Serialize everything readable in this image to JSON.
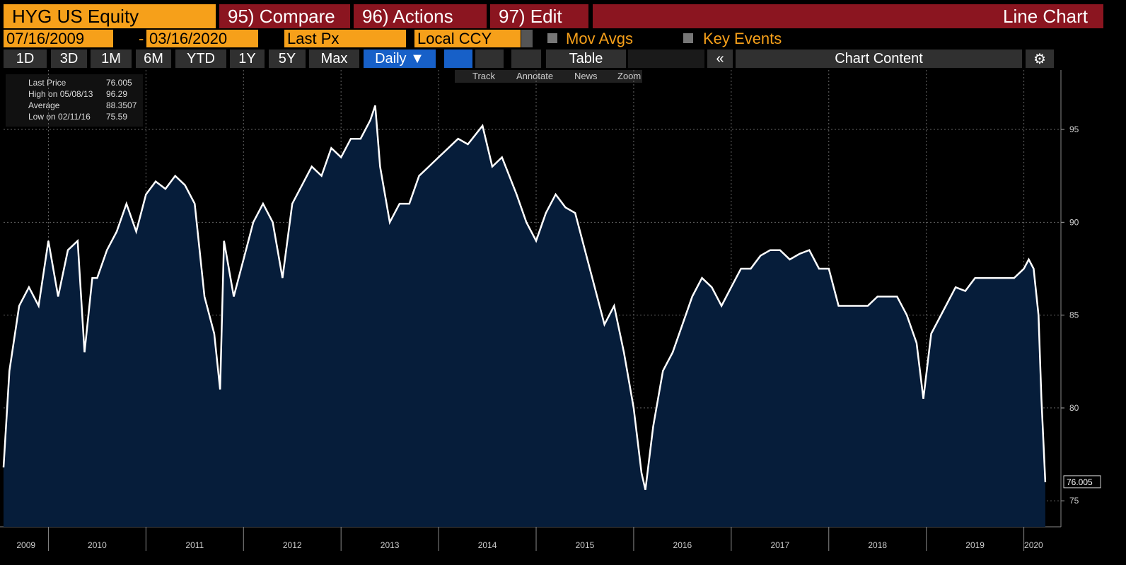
{
  "toolbar": {
    "security": "HYG US Equity",
    "compare": "95) Compare",
    "actions": "96) Actions",
    "edit": "97) Edit",
    "view": "Line Chart",
    "start_date": "07/16/2009",
    "date_sep": "-",
    "end_date": "03/16/2020",
    "field": "Last Px",
    "currency": "Local CCY",
    "mov_avgs": "Mov Avgs",
    "key_events": "Key Events",
    "periods": [
      "1D",
      "3D",
      "1M",
      "6M",
      "YTD",
      "1Y",
      "5Y",
      "Max"
    ],
    "frequency": "Daily ▼",
    "table": "Table",
    "chart_content": "Chart Content",
    "tools": [
      "Track",
      "Annotate",
      "News",
      "Zoom"
    ]
  },
  "legend": {
    "rows": [
      [
        "Last Price",
        "76.005"
      ],
      [
        "High on 05/08/13",
        "96.29"
      ],
      [
        "Average",
        "88.3507"
      ],
      [
        "Low on 02/11/16",
        "75.59"
      ]
    ]
  },
  "chart_data": {
    "type": "area",
    "series": [
      {
        "name": "Last Price",
        "color": "#ffffff",
        "fill": "#061d3a",
        "x": [
          2009.54,
          2009.6,
          2009.7,
          2009.8,
          2009.9,
          2010.0,
          2010.1,
          2010.2,
          2010.3,
          2010.37,
          2010.45,
          2010.5,
          2010.6,
          2010.7,
          2010.8,
          2010.9,
          2011.0,
          2011.1,
          2011.2,
          2011.3,
          2011.4,
          2011.5,
          2011.6,
          2011.7,
          2011.76,
          2011.8,
          2011.9,
          2012.0,
          2012.1,
          2012.2,
          2012.3,
          2012.4,
          2012.5,
          2012.6,
          2012.7,
          2012.8,
          2012.9,
          2013.0,
          2013.1,
          2013.2,
          2013.3,
          2013.35,
          2013.4,
          2013.5,
          2013.6,
          2013.7,
          2013.8,
          2013.9,
          2014.0,
          2014.1,
          2014.2,
          2014.3,
          2014.45,
          2014.55,
          2014.65,
          2014.8,
          2014.9,
          2015.0,
          2015.1,
          2015.2,
          2015.3,
          2015.4,
          2015.5,
          2015.6,
          2015.7,
          2015.8,
          2015.9,
          2016.0,
          2016.08,
          2016.12,
          2016.2,
          2016.3,
          2016.4,
          2016.5,
          2016.6,
          2016.7,
          2016.8,
          2016.9,
          2017.0,
          2017.1,
          2017.2,
          2017.3,
          2017.4,
          2017.5,
          2017.6,
          2017.7,
          2017.8,
          2017.9,
          2018.0,
          2018.1,
          2018.2,
          2018.3,
          2018.4,
          2018.5,
          2018.6,
          2018.7,
          2018.8,
          2018.9,
          2018.97,
          2019.05,
          2019.2,
          2019.3,
          2019.4,
          2019.5,
          2019.6,
          2019.7,
          2019.8,
          2019.9,
          2020.0,
          2020.05,
          2020.1,
          2020.15,
          2020.18,
          2020.22
        ],
        "values": [
          76.8,
          82,
          85.5,
          86.5,
          85.5,
          89,
          86,
          88.5,
          89,
          83,
          87,
          87,
          88.5,
          89.5,
          91,
          89.5,
          91.5,
          92.2,
          91.8,
          92.5,
          92,
          91,
          86,
          84,
          81,
          89,
          86,
          88,
          90,
          91,
          90,
          87,
          91,
          92,
          93,
          92.5,
          94,
          93.5,
          94.5,
          94.5,
          95.5,
          96.29,
          93,
          90,
          91,
          91,
          92.5,
          93,
          93.5,
          94,
          94.5,
          94.2,
          95.2,
          93,
          93.5,
          91.5,
          90,
          89,
          90.5,
          91.5,
          90.8,
          90.5,
          88.5,
          86.5,
          84.5,
          85.5,
          83,
          80,
          76.5,
          75.59,
          79,
          82,
          83,
          84.5,
          86,
          87,
          86.5,
          85.5,
          86.5,
          87.5,
          87.5,
          88.2,
          88.5,
          88.5,
          88,
          88.3,
          88.5,
          87.5,
          87.5,
          85.5,
          85.5,
          85.5,
          85.5,
          86,
          86,
          86,
          85,
          83.5,
          80.5,
          84,
          85.5,
          86.5,
          86.3,
          87,
          87,
          87,
          87,
          87,
          87.5,
          88,
          87.5,
          85,
          80.5,
          76.005
        ]
      }
    ],
    "xlim": [
      2009.54,
      2020.38
    ],
    "xticks": [
      {
        "value": 2009.77,
        "label": "2009"
      },
      {
        "value": 2010.5,
        "label": "2010"
      },
      {
        "value": 2011.5,
        "label": "2011"
      },
      {
        "value": 2012.5,
        "label": "2012"
      },
      {
        "value": 2013.5,
        "label": "2013"
      },
      {
        "value": 2014.5,
        "label": "2014"
      },
      {
        "value": 2015.5,
        "label": "2015"
      },
      {
        "value": 2016.5,
        "label": "2016"
      },
      {
        "value": 2017.5,
        "label": "2017"
      },
      {
        "value": 2018.5,
        "label": "2018"
      },
      {
        "value": 2019.5,
        "label": "2019"
      },
      {
        "value": 2020.1,
        "label": "2020"
      }
    ],
    "xgrid": [
      2010,
      2011,
      2012,
      2013,
      2014,
      2015,
      2016,
      2017,
      2018,
      2019,
      2020
    ],
    "ylim": [
      73.6,
      98.2
    ],
    "yticks": [
      75,
      80,
      85,
      90,
      95
    ],
    "grid": true
  }
}
